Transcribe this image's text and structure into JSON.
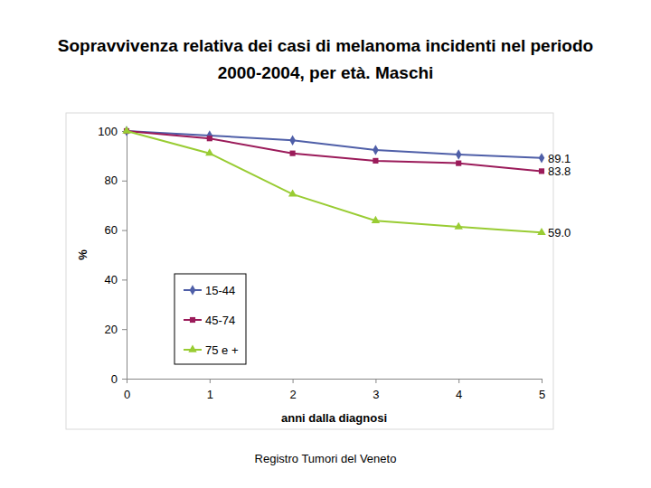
{
  "chart_data": {
    "type": "line",
    "title": "Sopravvivenza relativa dei casi di melanoma incidenti nel periodo 2000-2004, per età. Maschi",
    "x_label": "anni dalla diagnosi",
    "y_label": "%",
    "source": "Registro Tumori del Veneto",
    "x": [
      0,
      1,
      2,
      3,
      4,
      5
    ],
    "xlim": [
      0,
      5
    ],
    "xticks": [
      0,
      1,
      2,
      3,
      4,
      5
    ],
    "ylim": [
      0,
      100
    ],
    "yticks": [
      0,
      20,
      40,
      60,
      80,
      100
    ],
    "grid": false,
    "legend": "lower left",
    "data_labels": true,
    "series": [
      {
        "name": "15-44",
        "color": "#4f5fa8",
        "marker": "diamond",
        "values": [
          100,
          98.2,
          96.3,
          92.3,
          90.5,
          89.1
        ],
        "value_labels": [
          null,
          null,
          null,
          null,
          null,
          "89.1"
        ]
      },
      {
        "name": "45-74",
        "color": "#9b1b5a",
        "marker": "square",
        "values": [
          100,
          97,
          91,
          88,
          87,
          83.8
        ],
        "value_labels": [
          null,
          null,
          null,
          null,
          null,
          "83.8"
        ]
      },
      {
        "name": "75 e +",
        "color": "#99cc33",
        "marker": "triangle",
        "values": [
          100,
          91,
          74.5,
          63.8,
          61.3,
          59.0
        ],
        "value_labels": [
          null,
          null,
          null,
          null,
          null,
          "59.0"
        ]
      }
    ]
  }
}
